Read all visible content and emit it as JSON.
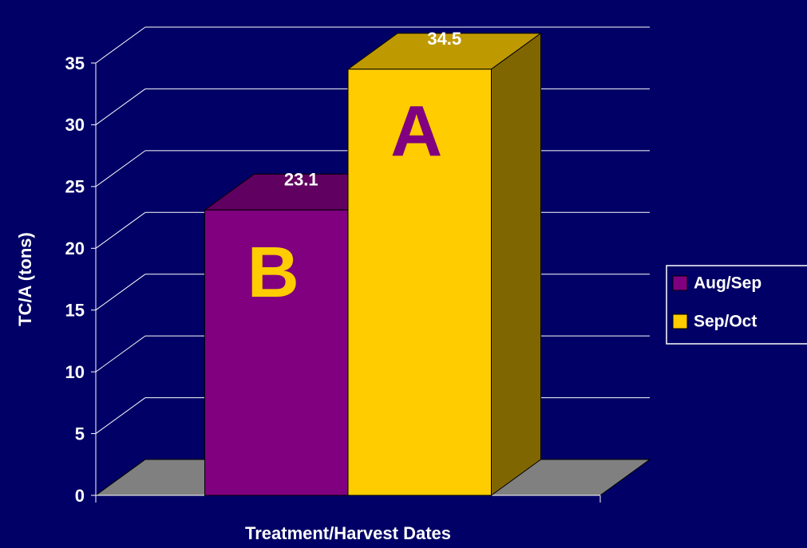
{
  "chart_data": {
    "type": "bar3d",
    "x_label": "Treatment/Harvest Dates",
    "y_label": "TC/A (tons)",
    "categories": [
      null
    ],
    "series": [
      {
        "name": "Aug/Sep",
        "color": "#800080",
        "values": [
          23.1
        ]
      },
      {
        "name": "Sep/Oct",
        "color": "#ffcc00",
        "values": [
          34.5
        ]
      }
    ],
    "annotations": [
      "B",
      "A"
    ],
    "annotation_colors": [
      "#ffcc00",
      "#800080"
    ],
    "ylim": [
      0,
      35
    ],
    "yticks": [
      0,
      5,
      10,
      15,
      20,
      25,
      30,
      35
    ],
    "grid": true,
    "legend": "right"
  }
}
